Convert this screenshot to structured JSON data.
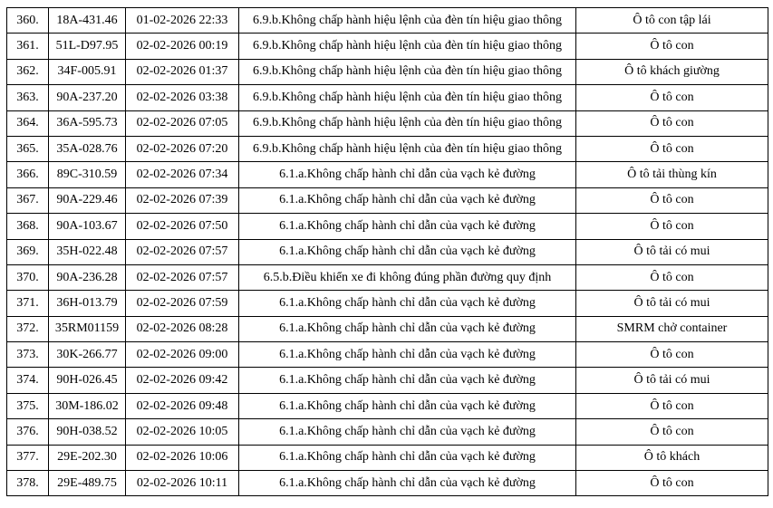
{
  "styles": {
    "border_color": "#000000",
    "text_color": "#000000",
    "background_color": "#ffffff"
  },
  "table": {
    "rows": [
      {
        "index": "360.",
        "plate": "18A-431.46",
        "datetime": "01-02-2026 22:33",
        "violation": "6.9.b.Không chấp hành hiệu lệnh của đèn tín hiệu giao thông",
        "vehicle": "Ô tô con tập lái"
      },
      {
        "index": "361.",
        "plate": "51L-D97.95",
        "datetime": "02-02-2026 00:19",
        "violation": "6.9.b.Không chấp hành hiệu lệnh của đèn tín hiệu giao thông",
        "vehicle": "Ô tô con"
      },
      {
        "index": "362.",
        "plate": "34F-005.91",
        "datetime": "02-02-2026 01:37",
        "violation": "6.9.b.Không chấp hành hiệu lệnh của đèn tín hiệu giao thông",
        "vehicle": "Ô tô khách giường"
      },
      {
        "index": "363.",
        "plate": "90A-237.20",
        "datetime": "02-02-2026 03:38",
        "violation": "6.9.b.Không chấp hành hiệu lệnh của đèn tín hiệu giao thông",
        "vehicle": "Ô tô con"
      },
      {
        "index": "364.",
        "plate": "36A-595.73",
        "datetime": "02-02-2026 07:05",
        "violation": "6.9.b.Không chấp hành hiệu lệnh của đèn tín hiệu giao thông",
        "vehicle": "Ô tô con"
      },
      {
        "index": "365.",
        "plate": "35A-028.76",
        "datetime": "02-02-2026 07:20",
        "violation": "6.9.b.Không chấp hành hiệu lệnh của đèn tín hiệu giao thông",
        "vehicle": "Ô tô con"
      },
      {
        "index": "366.",
        "plate": "89C-310.59",
        "datetime": "02-02-2026 07:34",
        "violation": "6.1.a.Không chấp hành chỉ dẫn của vạch kẻ đường",
        "vehicle": "Ô tô tải thùng kín"
      },
      {
        "index": "367.",
        "plate": "90A-229.46",
        "datetime": "02-02-2026 07:39",
        "violation": "6.1.a.Không chấp hành chỉ dẫn của vạch kẻ đường",
        "vehicle": "Ô tô con"
      },
      {
        "index": "368.",
        "plate": "90A-103.67",
        "datetime": "02-02-2026 07:50",
        "violation": "6.1.a.Không chấp hành chỉ dẫn của vạch kẻ đường",
        "vehicle": "Ô tô con"
      },
      {
        "index": "369.",
        "plate": "35H-022.48",
        "datetime": "02-02-2026 07:57",
        "violation": "6.1.a.Không chấp hành chỉ dẫn của vạch kẻ đường",
        "vehicle": "Ô tô tải có mui"
      },
      {
        "index": "370.",
        "plate": "90A-236.28",
        "datetime": "02-02-2026 07:57",
        "violation": "6.5.b.Điều khiển xe đi không đúng phần đường quy định",
        "vehicle": "Ô tô con"
      },
      {
        "index": "371.",
        "plate": "36H-013.79",
        "datetime": "02-02-2026 07:59",
        "violation": "6.1.a.Không chấp hành chỉ dẫn của vạch kẻ đường",
        "vehicle": "Ô tô tải có mui"
      },
      {
        "index": "372.",
        "plate": "35RM01159",
        "datetime": "02-02-2026 08:28",
        "violation": "6.1.a.Không chấp hành chỉ dẫn của vạch kẻ đường",
        "vehicle": "SMRM chở container"
      },
      {
        "index": "373.",
        "plate": "30K-266.77",
        "datetime": "02-02-2026 09:00",
        "violation": "6.1.a.Không chấp hành chỉ dẫn của vạch kẻ đường",
        "vehicle": "Ô tô con"
      },
      {
        "index": "374.",
        "plate": "90H-026.45",
        "datetime": "02-02-2026 09:42",
        "violation": "6.1.a.Không chấp hành chỉ dẫn của vạch kẻ đường",
        "vehicle": "Ô tô tải có mui"
      },
      {
        "index": "375.",
        "plate": "30M-186.02",
        "datetime": "02-02-2026 09:48",
        "violation": "6.1.a.Không chấp hành chỉ dẫn của vạch kẻ đường",
        "vehicle": "Ô tô con"
      },
      {
        "index": "376.",
        "plate": "90H-038.52",
        "datetime": "02-02-2026 10:05",
        "violation": "6.1.a.Không chấp hành chỉ dẫn của vạch kẻ đường",
        "vehicle": "Ô tô con"
      },
      {
        "index": "377.",
        "plate": "29E-202.30",
        "datetime": "02-02-2026 10:06",
        "violation": "6.1.a.Không chấp hành chỉ dẫn của vạch kẻ đường",
        "vehicle": "Ô tô khách"
      },
      {
        "index": "378.",
        "plate": "29E-489.75",
        "datetime": "02-02-2026 10:11",
        "violation": "6.1.a.Không chấp hành chỉ dẫn của vạch kẻ đường",
        "vehicle": "Ô tô con"
      }
    ]
  }
}
